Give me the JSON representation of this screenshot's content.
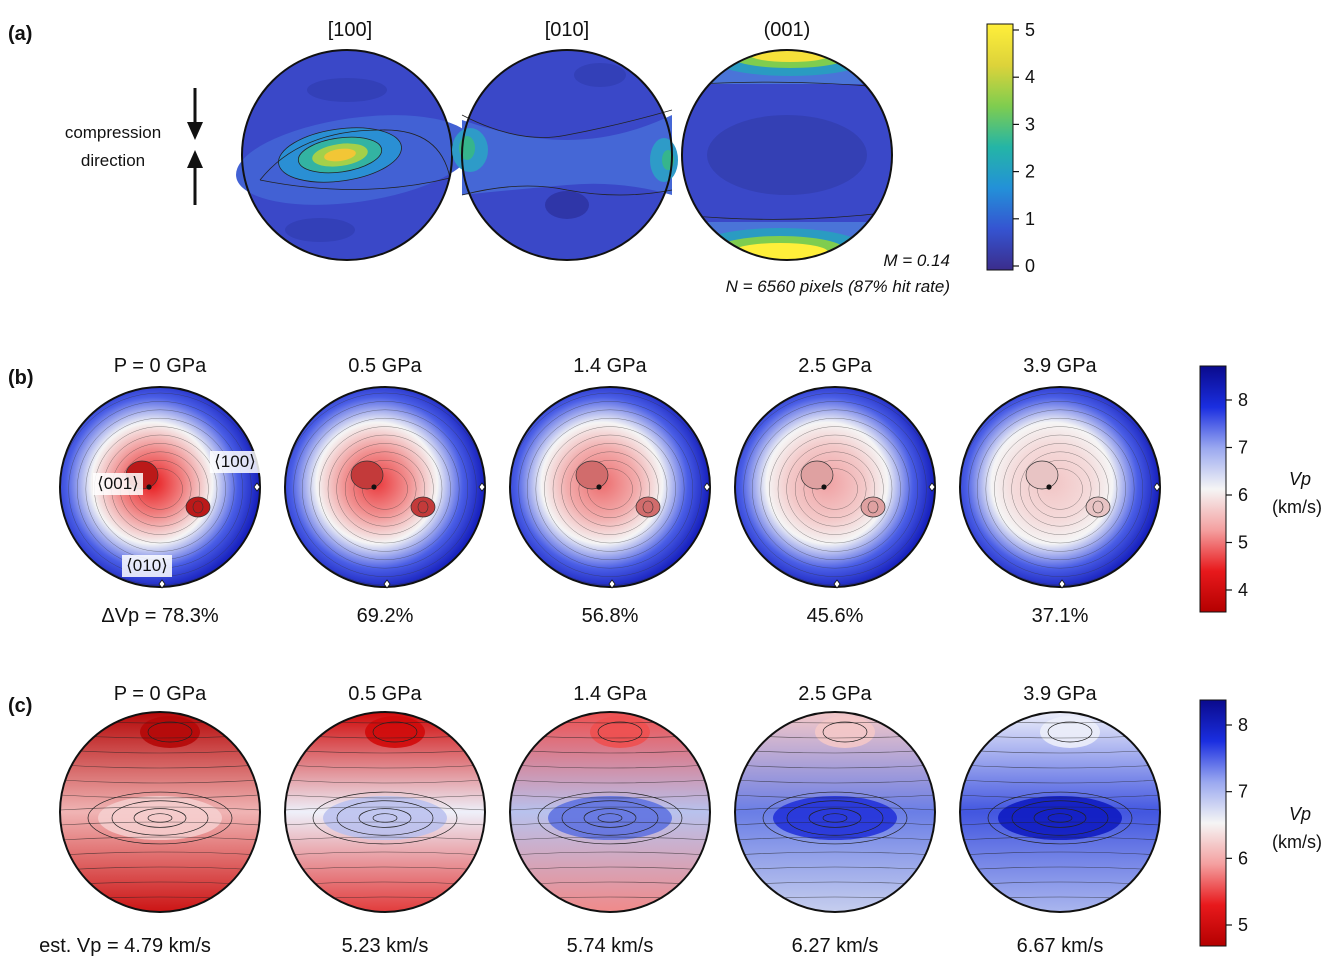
{
  "panel_a": {
    "label": "(a)",
    "titles": [
      "[100]",
      "[010]",
      "(001)"
    ],
    "compression_label": [
      "compression",
      "direction"
    ],
    "stats": [
      "M = 0.14",
      "N = 6560 pixels (87% hit rate)"
    ],
    "colorbar_ticks": [
      "0",
      "1",
      "2",
      "3",
      "4",
      "5"
    ],
    "colorbar_colors": [
      "#3b2d8c",
      "#3554d1",
      "#2391d8",
      "#24b5a6",
      "#7fcd4f",
      "#ddd33a",
      "#ffef3a"
    ]
  },
  "panel_b": {
    "label": "(b)",
    "pressures": [
      "P = 0 GPa",
      "0.5 GPa",
      "1.4 GPa",
      "2.5 GPa",
      "3.9 GPa"
    ],
    "anisotropy": [
      "ΔVp = 78.3%",
      "69.2%",
      "56.8%",
      "45.6%",
      "37.1%"
    ],
    "axis_labels": [
      "⟨001⟩",
      "⟨100⟩",
      "⟨010⟩"
    ],
    "red_strength": [
      1.0,
      0.85,
      0.62,
      0.38,
      0.22
    ],
    "colorbar_ticks": [
      "4",
      "5",
      "6",
      "7",
      "8"
    ],
    "colorbar_label": [
      "Vp",
      "(km/s)"
    ]
  },
  "panel_c": {
    "label": "(c)",
    "pressures": [
      "P = 0 GPa",
      "0.5 GPa",
      "1.4 GPa",
      "2.5 GPa",
      "3.9 GPa"
    ],
    "estimates": [
      "est. Vp = 4.79 km/s",
      "5.23 km/s",
      "5.74 km/s",
      "6.27 km/s",
      "6.67 km/s"
    ],
    "colorbar_ticks": [
      "5",
      "6",
      "7",
      "8"
    ],
    "colorbar_label": [
      "Vp",
      "(km/s)"
    ]
  },
  "colors": {
    "red_dark": "#b40000",
    "red": "#e8191c",
    "white": "#f5f5f5",
    "blue": "#1a2ee0",
    "blue_dark": "#0a0a8c"
  }
}
